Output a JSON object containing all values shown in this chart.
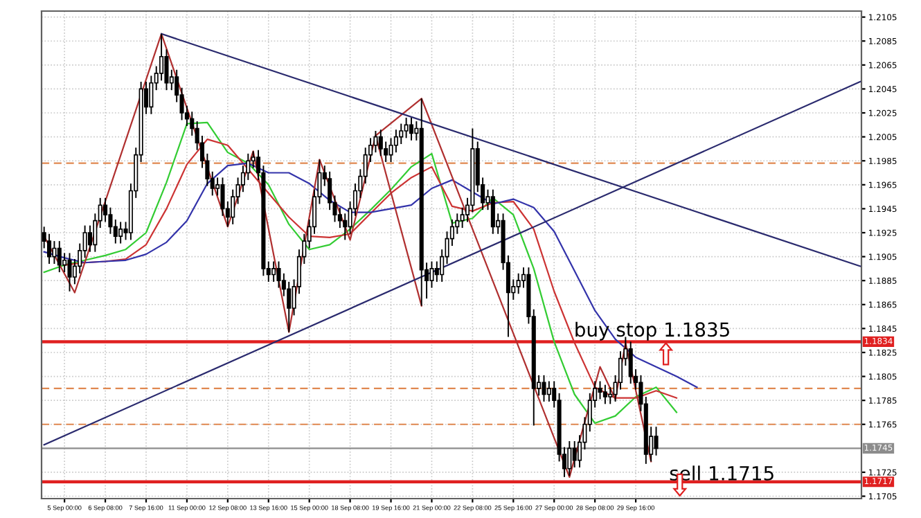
{
  "chart_data": {
    "type": "candlestick",
    "color": "#000000",
    "grid": true,
    "categories": [
      null,
      null,
      null,
      null,
      "5 Sep 00:00",
      null,
      null,
      null,
      null,
      null,
      null,
      null,
      "6 Sep 08:00",
      null,
      null,
      null,
      null,
      null,
      null,
      null,
      "7 Sep 16:00",
      null,
      null,
      null,
      null,
      null,
      null,
      null,
      "11 Sep 00:00",
      null,
      null,
      null,
      null,
      null,
      null,
      null,
      "12 Sep 08:00",
      null,
      null,
      null,
      null,
      null,
      null,
      null,
      "13 Sep 16:00",
      null,
      null,
      null,
      null,
      null,
      null,
      null,
      "15 Sep 00:00",
      null,
      null,
      null,
      null,
      null,
      null,
      null,
      "18 Sep 08:00",
      null,
      null,
      null,
      null,
      null,
      null,
      null,
      "19 Sep 16:00",
      null,
      null,
      null,
      null,
      null,
      null,
      null,
      "21 Sep 00:00",
      null,
      null,
      null,
      null,
      null,
      null,
      null,
      "22 Sep 08:00",
      null,
      null,
      null,
      null,
      null,
      null,
      null,
      "25 Sep 16:00",
      null,
      null,
      null,
      null,
      null,
      null,
      null,
      "27 Sep 00:00",
      null,
      null,
      null,
      null,
      null,
      null,
      null,
      "28 Sep 08:00",
      null,
      null,
      null,
      null,
      null,
      null,
      null,
      "29 Sep 16:00",
      null,
      null,
      null,
      null,
      null,
      null,
      null,
      null,
      null,
      null,
      null,
      null,
      null,
      null,
      null,
      null,
      null,
      null,
      null,
      null,
      null,
      null,
      null,
      null,
      null,
      null,
      null,
      null,
      null,
      null,
      null,
      null,
      null,
      null,
      null,
      null,
      null,
      null,
      null,
      null,
      null,
      null,
      null,
      null
    ],
    "ohlc": [
      [
        1.1925,
        1.193,
        1.1912,
        1.1918
      ],
      [
        1.1918,
        1.1924,
        1.1899,
        1.1905
      ],
      [
        1.1905,
        1.1918,
        1.1899,
        1.1912
      ],
      [
        1.1912,
        1.1918,
        1.1892,
        1.1898
      ],
      [
        1.1898,
        1.1908,
        1.1892,
        1.1902
      ],
      [
        1.1902,
        1.1908,
        1.1876,
        1.1888
      ],
      [
        1.1888,
        1.1903,
        1.1882,
        1.1897
      ],
      [
        1.1897,
        1.1916,
        1.1891,
        1.191
      ],
      [
        1.191,
        1.1931,
        1.1904,
        1.1925
      ],
      [
        1.1925,
        1.1931,
        1.1909,
        1.1915
      ],
      [
        1.1915,
        1.1941,
        1.1909,
        1.1935
      ],
      [
        1.1935,
        1.1954,
        1.1929,
        1.1948
      ],
      [
        1.1948,
        1.1954,
        1.1934,
        1.194
      ],
      [
        1.194,
        1.1946,
        1.1924,
        1.193
      ],
      [
        1.193,
        1.1936,
        1.1916,
        1.1922
      ],
      [
        1.1922,
        1.1934,
        1.1916,
        1.1928
      ],
      [
        1.1928,
        1.1934,
        1.1919,
        1.1925
      ],
      [
        1.1925,
        1.1966,
        1.1919,
        1.196
      ],
      [
        1.196,
        1.1996,
        1.1954,
        1.199
      ],
      [
        1.199,
        1.2051,
        1.1984,
        1.2045
      ],
      [
        1.2045,
        1.2051,
        1.2024,
        1.203
      ],
      [
        1.203,
        1.2056,
        1.2024,
        1.205
      ],
      [
        1.205,
        1.2064,
        1.2044,
        1.2058
      ],
      [
        1.2058,
        1.2091,
        1.2052,
        1.2072
      ],
      [
        1.2072,
        1.2078,
        1.2044,
        1.205
      ],
      [
        1.205,
        1.2061,
        1.2044,
        1.2055
      ],
      [
        1.2055,
        1.2061,
        1.2034,
        1.204
      ],
      [
        1.204,
        1.2046,
        1.2019,
        1.2025
      ],
      [
        1.2025,
        1.2031,
        1.2014,
        1.202
      ],
      [
        1.202,
        1.2026,
        1.2006,
        1.2012
      ],
      [
        1.2012,
        1.2018,
        1.1994,
        1.2
      ],
      [
        1.2,
        1.2006,
        1.1979,
        1.1985
      ],
      [
        1.1985,
        1.1991,
        1.1964,
        1.197
      ],
      [
        1.197,
        1.1976,
        1.1956,
        1.1962
      ],
      [
        1.1962,
        1.1971,
        1.1956,
        1.1965
      ],
      [
        1.1965,
        1.1971,
        1.1939,
        1.1945
      ],
      [
        1.1945,
        1.1951,
        1.193,
        1.1938
      ],
      [
        1.1938,
        1.1961,
        1.1932,
        1.1955
      ],
      [
        1.1955,
        1.1971,
        1.1949,
        1.1965
      ],
      [
        1.1965,
        1.1981,
        1.1959,
        1.1975
      ],
      [
        1.1975,
        1.1991,
        1.1969,
        1.1985
      ],
      [
        1.1985,
        1.1993,
        1.1979,
        1.1988
      ],
      [
        1.1988,
        1.1994,
        1.1969,
        1.1975
      ],
      [
        1.1975,
        1.1981,
        1.1889,
        1.1895
      ],
      [
        1.1895,
        1.1901,
        1.1884,
        1.189
      ],
      [
        1.189,
        1.1901,
        1.1884,
        1.1895
      ],
      [
        1.1895,
        1.1901,
        1.1879,
        1.1885
      ],
      [
        1.1885,
        1.1891,
        1.1872,
        1.1878
      ],
      [
        1.1878,
        1.1884,
        1.1842,
        1.1862
      ],
      [
        1.1862,
        1.1886,
        1.1856,
        1.188
      ],
      [
        1.188,
        1.1911,
        1.1874,
        1.1905
      ],
      [
        1.1905,
        1.1924,
        1.1899,
        1.1918
      ],
      [
        1.1918,
        1.1936,
        1.1912,
        1.193
      ],
      [
        1.193,
        1.1961,
        1.1924,
        1.1955
      ],
      [
        1.1955,
        1.1986,
        1.1949,
        1.1975
      ],
      [
        1.1975,
        1.1981,
        1.1964,
        1.197
      ],
      [
        1.197,
        1.1976,
        1.1944,
        1.195
      ],
      [
        1.195,
        1.1956,
        1.1934,
        1.194
      ],
      [
        1.194,
        1.1946,
        1.1929,
        1.1935
      ],
      [
        1.1935,
        1.1941,
        1.1919,
        1.193
      ],
      [
        1.193,
        1.1951,
        1.1924,
        1.1945
      ],
      [
        1.1945,
        1.1966,
        1.1939,
        1.196
      ],
      [
        1.196,
        1.1978,
        1.1954,
        1.1972
      ],
      [
        1.1972,
        1.1996,
        1.1966,
        1.199
      ],
      [
        1.199,
        1.2004,
        1.1984,
        1.1998
      ],
      [
        1.1998,
        1.201,
        1.1992,
        1.2005
      ],
      [
        1.2005,
        1.2011,
        1.1989,
        1.1995
      ],
      [
        1.1995,
        1.2001,
        1.1984,
        1.199
      ],
      [
        1.199,
        1.2004,
        1.1984,
        1.1998
      ],
      [
        1.1998,
        1.2011,
        1.1992,
        1.2005
      ],
      [
        1.2005,
        1.2016,
        1.1999,
        1.201
      ],
      [
        1.201,
        1.2021,
        1.2004,
        1.2015
      ],
      [
        1.2015,
        1.2021,
        1.2002,
        1.2008
      ],
      [
        1.2008,
        1.2018,
        1.2002,
        1.2012
      ],
      [
        1.2012,
        1.2037,
        1.1864,
        1.1894
      ],
      [
        1.1894,
        1.19,
        1.187,
        1.1885
      ],
      [
        1.1885,
        1.1901,
        1.1879,
        1.1895
      ],
      [
        1.1895,
        1.1901,
        1.1884,
        1.189
      ],
      [
        1.189,
        1.1911,
        1.1884,
        1.1905
      ],
      [
        1.1905,
        1.1926,
        1.1899,
        1.192
      ],
      [
        1.192,
        1.1936,
        1.1914,
        1.193
      ],
      [
        1.193,
        1.1941,
        1.1924,
        1.1935
      ],
      [
        1.1935,
        1.1946,
        1.1929,
        1.194
      ],
      [
        1.194,
        1.1954,
        1.1934,
        1.1948
      ],
      [
        1.1948,
        1.2012,
        1.1942,
        1.1995
      ],
      [
        1.1995,
        1.2001,
        1.1959,
        1.1965
      ],
      [
        1.1965,
        1.1971,
        1.1944,
        1.195
      ],
      [
        1.195,
        1.1961,
        1.1944,
        1.1955
      ],
      [
        1.1955,
        1.1961,
        1.1924,
        1.193
      ],
      [
        1.193,
        1.1941,
        1.1924,
        1.1935
      ],
      [
        1.1935,
        1.1941,
        1.1894,
        1.19
      ],
      [
        1.19,
        1.1906,
        1.1838,
        1.1875
      ],
      [
        1.1875,
        1.1886,
        1.1869,
        1.188
      ],
      [
        1.188,
        1.1891,
        1.1874,
        1.1885
      ],
      [
        1.1885,
        1.1896,
        1.1879,
        1.189
      ],
      [
        1.189,
        1.1896,
        1.1849,
        1.1855
      ],
      [
        1.1855,
        1.1861,
        1.1764,
        1.1795
      ],
      [
        1.1795,
        1.1806,
        1.1789,
        1.18
      ],
      [
        1.18,
        1.1806,
        1.1784,
        1.179
      ],
      [
        1.179,
        1.1801,
        1.1784,
        1.1795
      ],
      [
        1.1795,
        1.1801,
        1.1779,
        1.1785
      ],
      [
        1.1785,
        1.1791,
        1.1734,
        1.174
      ],
      [
        1.174,
        1.1746,
        1.1721,
        1.1728
      ],
      [
        1.1728,
        1.1751,
        1.1722,
        1.1745
      ],
      [
        1.1745,
        1.1751,
        1.1729,
        1.1735
      ],
      [
        1.1735,
        1.1756,
        1.1729,
        1.175
      ],
      [
        1.175,
        1.1771,
        1.1744,
        1.1765
      ],
      [
        1.1765,
        1.1791,
        1.1759,
        1.1785
      ],
      [
        1.1785,
        1.1801,
        1.1779,
        1.1795
      ],
      [
        1.1795,
        1.1801,
        1.1786,
        1.1792
      ],
      [
        1.1792,
        1.1798,
        1.1782,
        1.1788
      ],
      [
        1.1788,
        1.1796,
        1.1782,
        1.179
      ],
      [
        1.179,
        1.1806,
        1.1784,
        1.18
      ],
      [
        1.18,
        1.1826,
        1.1794,
        1.182
      ],
      [
        1.182,
        1.1838,
        1.1814,
        1.1828
      ],
      [
        1.1828,
        1.1834,
        1.1799,
        1.1805
      ],
      [
        1.1805,
        1.1811,
        1.1794,
        1.18
      ],
      [
        1.18,
        1.1806,
        1.1776,
        1.1782
      ],
      [
        1.1782,
        1.1788,
        1.1732,
        1.174
      ],
      [
        1.174,
        1.1763,
        1.1734,
        1.1755
      ],
      [
        1.1755,
        1.1763,
        1.1739,
        1.1745
      ],
      null,
      null,
      null,
      null,
      null,
      null,
      null,
      null,
      null,
      null,
      null,
      null,
      null,
      null,
      null,
      null,
      null,
      null,
      null,
      null,
      null,
      null,
      null,
      null,
      null,
      null,
      null,
      null,
      null,
      null,
      null,
      null,
      null,
      null,
      null,
      null,
      null,
      null,
      null,
      null
    ],
    "series": [
      {
        "type": "line",
        "color": "#33cc33",
        "values": [
          1.1892,
          null,
          null,
          null,
          1.1898,
          null,
          null,
          null,
          1.1902,
          null,
          null,
          null,
          1.1906,
          null,
          null,
          null,
          1.1911,
          null,
          null,
          null,
          1.1925,
          null,
          null,
          null,
          1.1967,
          null,
          null,
          null,
          1.2016,
          null,
          null,
          null,
          1.2017,
          null,
          null,
          null,
          1.1992,
          null,
          null,
          null,
          1.1983,
          null,
          null,
          null,
          1.1965,
          null,
          null,
          null,
          1.1932,
          null,
          null,
          null,
          1.1911,
          null,
          null,
          null,
          1.1915,
          null,
          null,
          null,
          1.1928,
          null,
          null,
          null,
          1.1944,
          null,
          null,
          null,
          1.1961,
          null,
          null,
          null,
          1.198,
          null,
          null,
          null,
          1.1991,
          null,
          null,
          null,
          1.1933,
          null,
          null,
          null,
          1.1937,
          null,
          null,
          null,
          1.1954,
          null,
          null,
          null,
          1.194,
          null,
          null,
          null,
          1.1895,
          null,
          null,
          null,
          1.1834,
          null,
          null,
          null,
          1.179,
          null,
          null,
          null,
          1.1766,
          null,
          null,
          null,
          1.1772,
          null,
          null,
          null,
          1.1788,
          null,
          null,
          null,
          1.1796,
          null,
          null,
          null,
          1.1775,
          null,
          null,
          null,
          null,
          null,
          null,
          null,
          null,
          null,
          null,
          null,
          null,
          null,
          null,
          null,
          null,
          null,
          null,
          null,
          null,
          null,
          null,
          null,
          null,
          null,
          null,
          null,
          null,
          null,
          null,
          null,
          null,
          null,
          null,
          null,
          null
        ]
      },
      {
        "type": "line",
        "color": "#cc3333",
        "values": [
          null,
          null,
          null,
          null,
          1.1898,
          null,
          null,
          null,
          1.19,
          null,
          null,
          null,
          1.1901,
          null,
          null,
          null,
          1.1903,
          null,
          null,
          null,
          1.1915,
          null,
          null,
          null,
          1.1945,
          null,
          null,
          null,
          1.1982,
          null,
          null,
          null,
          1.2003,
          null,
          null,
          null,
          1.1998,
          null,
          null,
          null,
          1.1978,
          null,
          null,
          null,
          1.1958,
          null,
          null,
          null,
          1.1938,
          null,
          null,
          null,
          1.1922,
          null,
          null,
          null,
          1.1921,
          null,
          null,
          null,
          1.1924,
          null,
          null,
          null,
          1.1941,
          null,
          null,
          null,
          1.1958,
          null,
          null,
          null,
          1.1971,
          null,
          null,
          null,
          1.198,
          null,
          null,
          null,
          1.1947,
          null,
          null,
          null,
          1.1943,
          null,
          null,
          null,
          1.195,
          null,
          null,
          null,
          1.1951,
          null,
          null,
          null,
          1.1928,
          null,
          null,
          null,
          1.1876,
          null,
          null,
          null,
          1.1833,
          null,
          null,
          null,
          1.1796,
          null,
          null,
          null,
          1.1787,
          null,
          null,
          null,
          1.1787,
          null,
          null,
          null,
          1.1793,
          null,
          null,
          null,
          1.1787,
          null,
          null,
          null,
          null,
          null,
          null,
          null,
          null,
          null,
          null,
          null,
          null,
          null,
          null,
          null,
          null,
          null,
          null,
          null,
          null,
          null,
          null,
          null,
          null,
          null,
          null,
          null,
          null,
          null,
          null,
          null,
          null,
          null,
          null,
          null,
          null
        ]
      },
      {
        "type": "line",
        "color": "#3333aa",
        "values": [
          1.1909,
          null,
          null,
          null,
          1.1904,
          null,
          null,
          null,
          1.19,
          null,
          null,
          null,
          1.1901,
          null,
          null,
          null,
          1.1902,
          null,
          null,
          null,
          1.1907,
          null,
          null,
          null,
          1.1917,
          null,
          null,
          null,
          1.1935,
          null,
          null,
          null,
          1.1966,
          null,
          null,
          null,
          1.1981,
          null,
          null,
          null,
          1.1983,
          null,
          null,
          null,
          1.1975,
          null,
          null,
          null,
          1.1975,
          null,
          null,
          null,
          1.1966,
          null,
          null,
          null,
          1.1952,
          null,
          null,
          null,
          1.1942,
          null,
          null,
          null,
          1.1942,
          null,
          null,
          null,
          1.1945,
          null,
          null,
          null,
          1.1948,
          null,
          null,
          null,
          1.1962,
          null,
          null,
          null,
          1.1969,
          null,
          null,
          null,
          1.1959,
          null,
          null,
          null,
          1.1949,
          null,
          null,
          null,
          1.1953,
          null,
          null,
          null,
          1.1946,
          null,
          null,
          null,
          1.1926,
          null,
          null,
          null,
          1.1893,
          null,
          null,
          null,
          1.186,
          null,
          null,
          null,
          1.1836,
          null,
          null,
          null,
          1.1821,
          null,
          null,
          null,
          1.1813,
          null,
          null,
          null,
          1.1805,
          null,
          null,
          null,
          1.1796,
          null,
          null,
          null,
          null,
          null,
          null,
          null,
          null,
          null,
          null,
          null,
          null,
          null,
          null,
          null,
          null,
          null,
          null,
          null,
          null,
          null,
          null,
          null,
          null,
          null,
          null,
          null,
          null,
          null,
          null,
          null,
          null
        ]
      },
      {
        "type": "line",
        "color": "#b03030",
        "values": [
          1.1922,
          null,
          null,
          null,
          null,
          null,
          1.1875,
          null,
          null,
          null,
          null,
          null,
          null,
          null,
          null,
          null,
          null,
          null,
          null,
          null,
          null,
          null,
          null,
          1.2091,
          null,
          null,
          null,
          null,
          null,
          null,
          null,
          null,
          null,
          null,
          null,
          null,
          1.193,
          null,
          null,
          null,
          null,
          1.1993,
          null,
          null,
          null,
          null,
          null,
          null,
          1.1842,
          null,
          null,
          null,
          null,
          null,
          1.1986,
          null,
          null,
          null,
          null,
          null,
          1.1919,
          null,
          null,
          null,
          null,
          1.2006,
          null,
          null,
          null,
          null,
          null,
          null,
          null,
          null,
          1.2037,
          null,
          null,
          null,
          null,
          null,
          null,
          null,
          null,
          null,
          null,
          null,
          null,
          null,
          null,
          null,
          null,
          null,
          null,
          null,
          null,
          null,
          null,
          null,
          null,
          null,
          null,
          null,
          null,
          1.1721,
          null,
          null,
          null,
          null,
          null,
          1.1813,
          null,
          null,
          1.1786,
          null,
          1.1833,
          null,
          null,
          null,
          null,
          1.1734,
          null,
          null,
          null,
          null,
          null,
          null,
          null,
          null,
          null,
          null,
          null,
          null,
          null,
          null,
          null,
          null,
          null,
          null,
          null,
          null,
          null,
          null,
          null,
          null,
          null,
          null,
          null,
          null,
          null,
          null,
          null,
          null,
          null,
          null,
          null,
          null,
          null,
          null,
          null,
          null,
          null
        ]
      },
      {
        "type": "line",
        "color": "#b03030",
        "values": [
          null,
          null,
          null,
          null,
          null,
          null,
          null,
          null,
          null,
          null,
          null,
          null,
          null,
          null,
          null,
          null,
          null,
          null,
          null,
          null,
          null,
          null,
          null,
          null,
          null,
          null,
          null,
          null,
          null,
          null,
          null,
          null,
          null,
          null,
          null,
          null,
          null,
          null,
          null,
          null,
          null,
          null,
          null,
          null,
          null,
          null,
          null,
          null,
          null,
          null,
          null,
          null,
          null,
          null,
          null,
          null,
          null,
          null,
          null,
          null,
          null,
          null,
          null,
          null,
          null,
          1.2006,
          null,
          null,
          null,
          null,
          null,
          null,
          null,
          null,
          1.1864,
          null,
          null,
          null,
          null,
          null,
          null,
          null,
          null,
          null,
          null,
          null,
          null,
          null,
          null,
          null,
          null,
          null,
          null,
          null,
          null,
          null,
          null,
          null,
          null,
          null,
          null,
          null,
          null,
          null,
          null,
          null,
          null,
          null,
          null,
          null,
          null,
          null,
          null,
          null,
          null,
          null,
          null,
          null,
          null,
          null,
          null,
          null,
          null,
          null,
          null,
          null,
          null,
          null,
          null,
          null,
          null,
          null,
          null,
          null,
          null,
          null,
          null,
          null,
          null,
          null,
          null,
          null,
          null,
          null,
          null,
          null,
          null,
          null,
          null,
          null,
          null,
          null,
          null,
          null,
          null,
          null,
          null,
          null,
          null,
          null,
          null
        ]
      },
      {
        "type": "line",
        "color": "#2a2a6e",
        "values": [
          null,
          null,
          null,
          null,
          null,
          null,
          null,
          null,
          null,
          null,
          null,
          null,
          null,
          null,
          null,
          null,
          null,
          null,
          null,
          null,
          null,
          null,
          null,
          1.2091,
          null,
          null,
          null,
          null,
          null,
          null,
          null,
          null,
          null,
          null,
          null,
          null,
          null,
          null,
          null,
          null,
          null,
          null,
          null,
          null,
          null,
          null,
          null,
          null,
          null,
          null,
          null,
          null,
          null,
          null,
          null,
          null,
          null,
          null,
          null,
          null,
          null,
          null,
          null,
          null,
          null,
          null,
          null,
          null,
          null,
          null,
          null,
          null,
          null,
          null,
          null,
          null,
          null,
          null,
          null,
          null,
          null,
          null,
          null,
          null,
          null,
          null,
          null,
          null,
          null,
          null,
          null,
          null,
          null,
          null,
          null,
          null,
          null,
          null,
          null,
          null,
          null,
          null,
          null,
          null,
          null,
          null,
          null,
          null,
          null,
          null,
          null,
          null,
          null,
          null,
          null,
          null,
          null,
          null,
          null,
          null,
          null,
          null,
          null,
          null,
          null,
          null,
          null,
          null,
          null,
          null,
          null,
          null,
          null,
          null,
          null,
          null,
          null,
          null,
          null,
          null,
          null,
          null,
          null,
          null,
          null,
          null,
          null,
          null,
          null,
          null,
          null,
          null,
          null,
          null,
          null,
          null,
          null,
          null,
          null,
          null,
          1.1897
        ]
      },
      {
        "type": "line",
        "color": "#2a2a6e",
        "values": [
          1.1748,
          null,
          null,
          null,
          null,
          null,
          null,
          null,
          null,
          null,
          null,
          null,
          null,
          null,
          null,
          null,
          null,
          null,
          null,
          null,
          null,
          null,
          null,
          null,
          null,
          null,
          null,
          null,
          null,
          null,
          null,
          null,
          null,
          null,
          null,
          null,
          null,
          null,
          null,
          null,
          null,
          null,
          null,
          null,
          null,
          null,
          null,
          null,
          null,
          null,
          null,
          null,
          null,
          null,
          null,
          null,
          null,
          null,
          null,
          null,
          null,
          null,
          null,
          null,
          null,
          null,
          null,
          null,
          null,
          null,
          null,
          null,
          null,
          null,
          null,
          null,
          null,
          null,
          null,
          null,
          null,
          null,
          null,
          null,
          null,
          null,
          null,
          null,
          null,
          null,
          null,
          null,
          null,
          null,
          null,
          null,
          null,
          null,
          null,
          null,
          null,
          null,
          null,
          null,
          null,
          null,
          null,
          null,
          null,
          null,
          null,
          null,
          null,
          null,
          null,
          null,
          null,
          null,
          null,
          null,
          null,
          null,
          null,
          null,
          null,
          null,
          null,
          null,
          null,
          null,
          null,
          null,
          null,
          null,
          null,
          null,
          null,
          null,
          null,
          null,
          null,
          null,
          null,
          null,
          null,
          null,
          null,
          null,
          null,
          null,
          null,
          null,
          null,
          null,
          null,
          null,
          null,
          null,
          null,
          null,
          1.2051
        ]
      }
    ],
    "ylim": [
      1.1703,
      1.211
    ],
    "yticks": [
      1.1705,
      1.1725,
      1.1765,
      1.1785,
      1.1805,
      1.1825,
      1.1845,
      1.1865,
      1.1885,
      1.1905,
      1.1925,
      1.1945,
      1.1965,
      1.1985,
      1.2005,
      1.2025,
      1.2045,
      1.2065,
      1.2085,
      1.2105
    ],
    "ref_lines": [
      {
        "axis": "y",
        "value": 1.1834,
        "label": "1.1834",
        "color": "#e02020"
      },
      {
        "axis": "y",
        "value": 1.1745,
        "label": "1.1745",
        "color": "#8c8c8c"
      },
      {
        "axis": "y",
        "value": 1.1717,
        "label": "1.1717",
        "color": "#e02020"
      },
      {
        "axis": "y",
        "value": 1.1983,
        "color": "#e08850",
        "line_style": "dashed"
      },
      {
        "axis": "y",
        "value": 1.1795,
        "color": "#e08850",
        "line_style": "dashed"
      },
      {
        "axis": "y",
        "value": 1.1765,
        "color": "#e08850",
        "line_style": "dashed"
      }
    ],
    "annotations": [
      {
        "text": "buy stop 1.1835",
        "y": 1.1835
      },
      {
        "text": "sell 1.1715",
        "y": 1.1715
      }
    ]
  }
}
